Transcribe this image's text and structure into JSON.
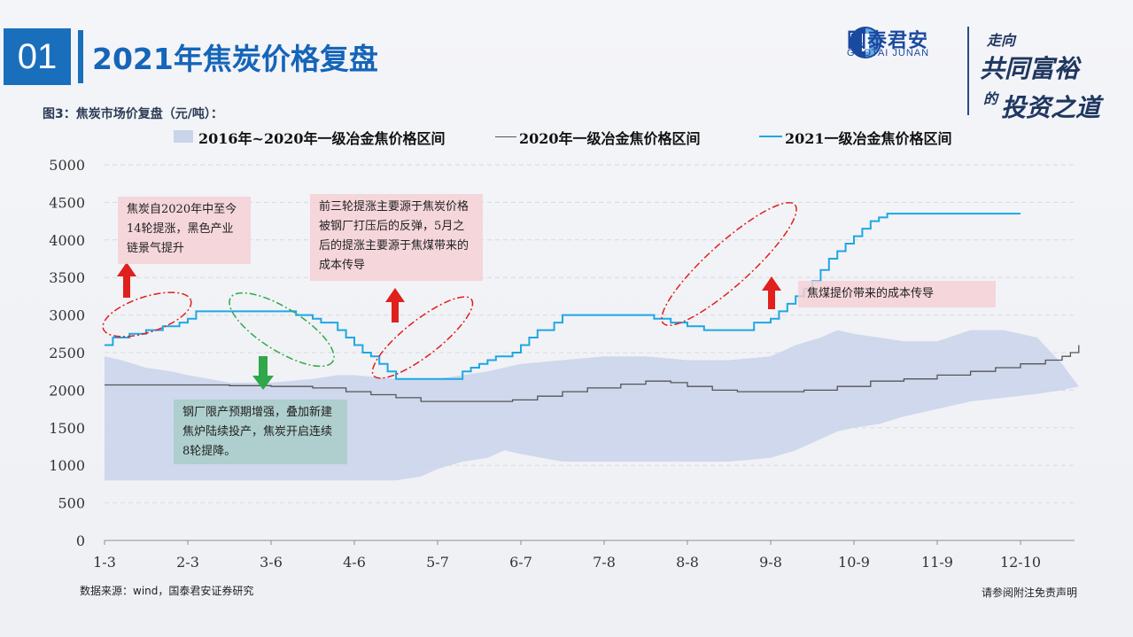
{
  "header": {
    "slide_number": "01",
    "title": "2021年焦炭价格复盘"
  },
  "brand": {
    "name_cn": "国泰君安",
    "name_en": "GUOTAI JUNAN",
    "slogan_line1": "走向",
    "slogan_line2": "共同富裕",
    "slogan_line3": "的",
    "slogan_line4": "投资之道",
    "color": "#1a4aa0"
  },
  "figure_title": "图3：焦炭市场价复盘（元/吨）：",
  "legend": {
    "band": "2016年~2020年一级冶金焦价格区间",
    "line2020": "2020年一级冶金焦价格区间",
    "line2021": "2021一级冶金焦价格区间"
  },
  "annotations": {
    "a1": "焦炭自2020年中至今14轮提涨，黑色产业链景气提升",
    "a2": "前三轮提涨主要源于焦炭价格被钢厂打压后的反弹，5月之后的提涨主要源于焦煤带来的成本传导",
    "a3": "焦煤提价带来的成本传导",
    "a4": "钢厂限产预期增强，叠加新建焦炉陆续投产，焦炭开启连续8轮提降。"
  },
  "footer": {
    "source": "数据来源：wind，国泰君安证券研究",
    "disclaimer": "请参阅附注免责声明"
  },
  "chart_data": {
    "type": "line",
    "x_tick_labels": [
      "1-3",
      "2-3",
      "3-6",
      "4-6",
      "5-7",
      "6-7",
      "7-8",
      "8-8",
      "9-8",
      "10-9",
      "11-9",
      "12-10"
    ],
    "ylim": [
      0,
      5000
    ],
    "y_ticks": [
      0,
      500,
      1000,
      1500,
      2000,
      2500,
      3000,
      3500,
      4000,
      4500,
      5000
    ],
    "grid": true,
    "legend_position": "top",
    "colors": {
      "band": "#c9d4ea",
      "line2020": "#555555",
      "line2021": "#1ea7e4",
      "up_arrow": "#e0201c",
      "down_arrow": "#2ea84a"
    },
    "band": {
      "name": "2016年~2020年一级冶金焦价格区间",
      "x": [
        0,
        0.2,
        0.5,
        0.8,
        1.0,
        1.5,
        2.0,
        2.5,
        2.8,
        3.0,
        3.2,
        3.5,
        3.8,
        4.0,
        4.3,
        4.6,
        4.8,
        5.0,
        5.5,
        6.0,
        6.5,
        7.0,
        7.5,
        8.0,
        8.3,
        8.6,
        8.8,
        9.0,
        9.3,
        9.6,
        10.0,
        10.4,
        10.8,
        11.2,
        11.5,
        11.7
      ],
      "high": [
        2450,
        2400,
        2300,
        2250,
        2200,
        2100,
        2100,
        2150,
        2200,
        2200,
        2180,
        2150,
        2150,
        2150,
        2200,
        2250,
        2300,
        2350,
        2400,
        2450,
        2450,
        2400,
        2400,
        2450,
        2600,
        2700,
        2800,
        2750,
        2700,
        2650,
        2650,
        2800,
        2800,
        2700,
        2350,
        2050
      ],
      "low": [
        800,
        800,
        800,
        800,
        800,
        800,
        800,
        800,
        800,
        800,
        800,
        800,
        850,
        950,
        1050,
        1100,
        1200,
        1150,
        1050,
        1050,
        1050,
        1050,
        1050,
        1100,
        1200,
        1350,
        1450,
        1500,
        1550,
        1650,
        1750,
        1850,
        1900,
        1950,
        2000,
        2050
      ]
    },
    "series": [
      {
        "name": "2020年一级冶金焦价格区间",
        "x": [
          0,
          0.5,
          1.0,
          1.5,
          2.0,
          2.5,
          2.9,
          3.2,
          3.5,
          3.8,
          4.2,
          4.6,
          4.9,
          5.2,
          5.5,
          5.8,
          6.2,
          6.5,
          6.8,
          7.0,
          7.3,
          7.6,
          8.0,
          8.4,
          8.8,
          9.2,
          9.6,
          10.0,
          10.4,
          10.7,
          11.0,
          11.3,
          11.5,
          11.6,
          11.7
        ],
        "values": [
          2070,
          2070,
          2070,
          2060,
          2050,
          2030,
          1980,
          1940,
          1900,
          1850,
          1850,
          1850,
          1870,
          1920,
          1980,
          2030,
          2080,
          2120,
          2100,
          2050,
          2000,
          1980,
          1980,
          2000,
          2050,
          2120,
          2150,
          2200,
          2250,
          2300,
          2350,
          2400,
          2450,
          2500,
          2600
        ]
      },
      {
        "name": "2021一级冶金焦价格区间",
        "x": [
          0,
          0.1,
          0.2,
          0.3,
          0.5,
          0.7,
          0.9,
          1.0,
          1.1,
          2.0,
          2.3,
          2.5,
          2.6,
          2.8,
          2.9,
          3.0,
          3.1,
          3.2,
          3.3,
          3.4,
          3.5,
          3.6,
          3.8,
          4.2,
          4.3,
          4.4,
          4.5,
          4.6,
          4.7,
          4.9,
          5.0,
          5.1,
          5.2,
          5.4,
          5.5,
          6.3,
          6.6,
          6.8,
          7.0,
          7.2,
          7.4,
          7.6,
          7.8,
          8.0,
          8.1,
          8.2,
          8.3,
          8.4,
          8.5,
          8.6,
          8.7,
          8.8,
          8.9,
          9.0,
          9.1,
          9.2,
          9.3,
          9.4,
          9.5,
          9.8,
          10.5,
          11.0
        ],
        "values": [
          2600,
          2700,
          2700,
          2750,
          2800,
          2850,
          2900,
          2950,
          3050,
          3050,
          3000,
          2950,
          2900,
          2800,
          2700,
          2600,
          2500,
          2450,
          2350,
          2250,
          2150,
          2150,
          2150,
          2150,
          2250,
          2300,
          2350,
          2400,
          2450,
          2500,
          2600,
          2700,
          2800,
          2900,
          3000,
          3000,
          2950,
          2900,
          2850,
          2800,
          2800,
          2800,
          2900,
          2950,
          3050,
          3150,
          3250,
          3350,
          3450,
          3600,
          3750,
          3850,
          3950,
          4050,
          4150,
          4250,
          4300,
          4350,
          4350,
          4350,
          4350,
          4350
        ]
      }
    ]
  }
}
